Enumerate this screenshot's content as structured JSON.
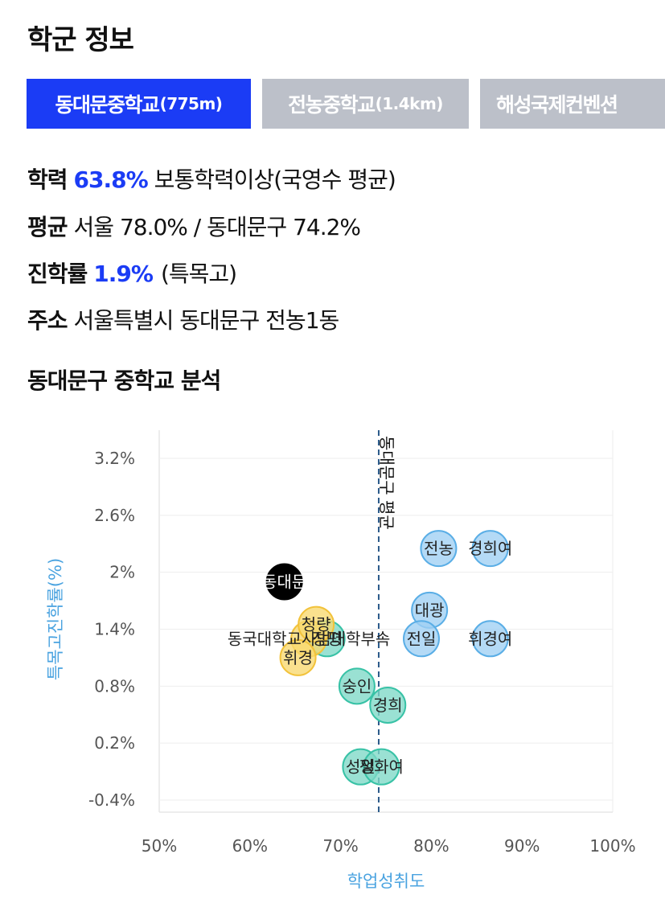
{
  "header": {
    "title": "학군 정보"
  },
  "tabs": [
    {
      "name": "동대문중학교",
      "distance": "(775m)",
      "active": true
    },
    {
      "name": "전농중학교",
      "distance": "(1.4km)",
      "active": false
    },
    {
      "name": "해성국제컨벤션",
      "distance": "",
      "active": false
    }
  ],
  "info": {
    "academic": {
      "label": "학력",
      "value": "63.8%",
      "desc": "보통학력이상(국영수 평균)"
    },
    "average": {
      "label": "평균",
      "value": "서울 78.0% / 동대문구 74.2%"
    },
    "advancement": {
      "label": "진학률",
      "value": "1.9%",
      "desc": "(특목고)"
    },
    "address": {
      "label": "주소",
      "value": "서울특별시 동대문구 전농1동"
    }
  },
  "analysis": {
    "title": "동대문구 중학교 분석"
  },
  "colors": {
    "accent": "#1b3cf5",
    "tab_inactive": "#bcc0c9",
    "axis_title": "#4aa3e0"
  },
  "chart_data": {
    "type": "scatter",
    "xlabel": "학업성취도",
    "ylabel": "특목고진학률(%)",
    "xlim": [
      50,
      100
    ],
    "ylim": [
      -0.5,
      3.5
    ],
    "x_ticks": [
      "50%",
      "60%",
      "70%",
      "80%",
      "90%",
      "100%"
    ],
    "y_ticks": [
      "-0.4%",
      "0.2%",
      "0.8%",
      "1.4%",
      "2%",
      "2.6%",
      "3.2%"
    ],
    "reference_line": {
      "x": 74.2,
      "label": "동대문구 평균"
    },
    "groups": [
      {
        "name": "selected",
        "color": "#000000"
      },
      {
        "name": "top",
        "color": "#89c4ef"
      },
      {
        "name": "mid",
        "color": "#5cd0bb"
      },
      {
        "name": "low",
        "color": "#f8d05a"
      }
    ],
    "points": [
      {
        "label": "전농",
        "x": 80.8,
        "y": 2.25,
        "group": "top"
      },
      {
        "label": "경희여",
        "x": 86.5,
        "y": 2.25,
        "group": "top"
      },
      {
        "label": "대광",
        "x": 79.8,
        "y": 1.6,
        "group": "top"
      },
      {
        "label": "휘경여",
        "x": 86.5,
        "y": 1.3,
        "group": "top"
      },
      {
        "label": "전일",
        "x": 78.9,
        "y": 1.3,
        "group": "top"
      },
      {
        "label": "장평",
        "x": 68.5,
        "y": 1.3,
        "group": "mid"
      },
      {
        "label": "숭인",
        "x": 71.8,
        "y": 0.8,
        "group": "mid"
      },
      {
        "label": "경희",
        "x": 75.2,
        "y": 0.6,
        "group": "mid"
      },
      {
        "label": "성일",
        "x": 72.2,
        "y": -0.05,
        "group": "mid"
      },
      {
        "label": "정화여",
        "x": 74.5,
        "y": -0.05,
        "group": "mid"
      },
      {
        "label": "동국대학교사범대학부속",
        "x": 66.5,
        "y": 1.3,
        "group": "low"
      },
      {
        "label": "청량",
        "x": 67.3,
        "y": 1.45,
        "group": "low"
      },
      {
        "label": "휘경",
        "x": 65.3,
        "y": 1.1,
        "group": "low"
      },
      {
        "label": "동대문",
        "x": 63.8,
        "y": 1.9,
        "group": "selected"
      }
    ]
  }
}
